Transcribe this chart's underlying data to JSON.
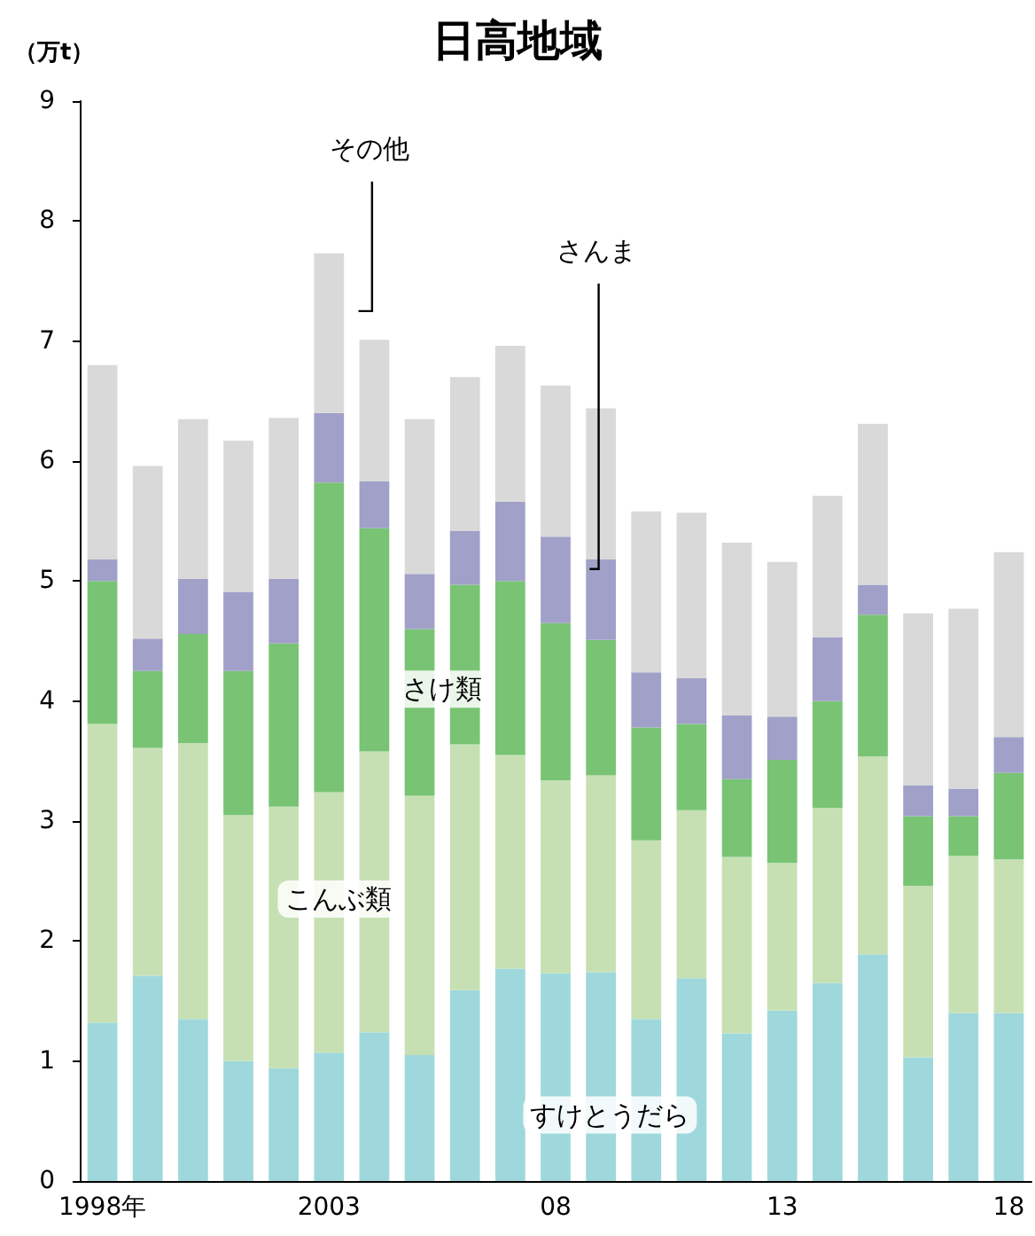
{
  "chart_data": {
    "type": "bar",
    "title": "日高地域",
    "ylabel": "（万t）",
    "stacked": true,
    "legend": false,
    "grid": false,
    "categories": [
      "1998年",
      null,
      null,
      null,
      null,
      "2003",
      null,
      null,
      null,
      null,
      "08",
      null,
      null,
      null,
      null,
      "13",
      null,
      null,
      null,
      null,
      "18"
    ],
    "ylim": [
      0,
      9
    ],
    "yticks": [
      0,
      1,
      2,
      3,
      4,
      5,
      6,
      7,
      8,
      9
    ],
    "series": [
      {
        "name": "すけとうだら",
        "color": "#9fd8dc",
        "values": [
          1.32,
          1.71,
          1.35,
          1.0,
          0.94,
          1.07,
          1.24,
          1.05,
          1.59,
          1.77,
          1.73,
          1.74,
          1.35,
          1.69,
          1.23,
          1.42,
          1.65,
          1.89,
          1.03,
          1.4,
          1.4
        ]
      },
      {
        "name": "こんぶ類",
        "color": "#c6e0b4",
        "values": [
          2.49,
          1.9,
          2.3,
          2.05,
          2.18,
          2.17,
          2.34,
          2.16,
          2.05,
          1.78,
          1.61,
          1.64,
          1.49,
          1.4,
          1.47,
          1.23,
          1.46,
          1.65,
          1.43,
          1.31,
          1.28
        ]
      },
      {
        "name": "さけ類",
        "color": "#78c474",
        "values": [
          1.19,
          0.64,
          0.91,
          1.2,
          1.36,
          2.58,
          1.86,
          1.39,
          1.33,
          1.45,
          1.31,
          1.13,
          0.94,
          0.72,
          0.65,
          0.86,
          0.89,
          1.18,
          0.58,
          0.33,
          0.72
        ]
      },
      {
        "name": "さんま",
        "color": "#a0a0c8",
        "values": [
          0.18,
          0.27,
          0.46,
          0.66,
          0.54,
          0.58,
          0.39,
          0.46,
          0.45,
          0.66,
          0.72,
          0.67,
          0.46,
          0.38,
          0.53,
          0.36,
          0.53,
          0.25,
          0.26,
          0.23,
          0.3
        ]
      },
      {
        "name": "その他",
        "color": "#d9d9d9",
        "values": [
          1.62,
          1.44,
          1.33,
          1.26,
          1.34,
          1.33,
          1.18,
          1.29,
          1.28,
          1.3,
          1.26,
          1.26,
          1.34,
          1.38,
          1.44,
          1.29,
          1.18,
          1.34,
          1.43,
          1.5,
          1.54
        ]
      }
    ]
  }
}
